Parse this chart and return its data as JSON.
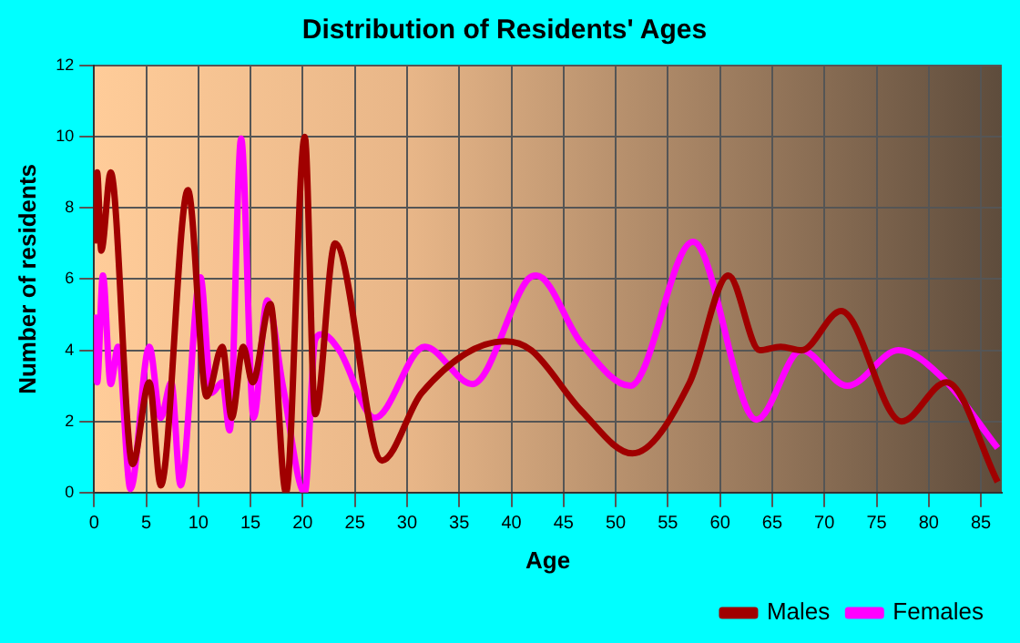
{
  "chart_data": {
    "type": "line",
    "title": "Distribution of Residents' Ages",
    "xlabel": "Age",
    "ylabel": "Number of residents",
    "xlim": [
      0,
      87
    ],
    "xticks": [
      0,
      5,
      10,
      15,
      20,
      25,
      30,
      35,
      40,
      45,
      50,
      55,
      60,
      65,
      70,
      75,
      80,
      85
    ],
    "ylim": [
      0,
      12
    ],
    "yticks": [
      0,
      2,
      4,
      6,
      8,
      10,
      12
    ],
    "grid": true,
    "legend": "bottom right",
    "marker": "none",
    "line_style": "solid",
    "series": [
      {
        "name": "Males",
        "color": "#a00000",
        "x": [
          0,
          0.3,
          0.7,
          1.6,
          3.7,
          5.3,
          6.4,
          9,
          10.8,
          12.3,
          13.2,
          14.3,
          15.2,
          16.9,
          18.4,
          20.2,
          21.2,
          23.1,
          27.6,
          31.4,
          39.4,
          41.9,
          46.7,
          51.6,
          57.1,
          60.8,
          63.8,
          65.8,
          67.8,
          71.6,
          77.4,
          81.7,
          86.6
        ],
        "values": [
          7,
          9,
          6.8,
          9,
          0.8,
          3.1,
          0.2,
          8.5,
          2.7,
          4.1,
          2.1,
          4.1,
          3.1,
          5.3,
          0,
          10,
          2.2,
          7,
          0.9,
          2.8,
          4.25,
          4,
          2.3,
          1.1,
          3.1,
          6.1,
          4,
          4.1,
          4,
          5.1,
          2,
          3.1,
          0.3
        ]
      },
      {
        "name": "Females",
        "color": "#ff00ff",
        "x": [
          0,
          0.3,
          0.85,
          1.6,
          2.3,
          3.5,
          5.3,
          6.4,
          7.4,
          8.3,
          10.2,
          11.25,
          12.3,
          13,
          14.1,
          15.3,
          16.6,
          18.1,
          20.2,
          21.2,
          21.9,
          23.5,
          26.9,
          31.7,
          36.25,
          41.6,
          42.4,
          46.7,
          51.4,
          57.4,
          63.5,
          67.8,
          72.2,
          77.1,
          81.4,
          86.6
        ],
        "values": [
          5,
          3.1,
          6.1,
          3.05,
          4.1,
          0.1,
          4.1,
          2.1,
          3.1,
          0.2,
          6.05,
          2.8,
          3.1,
          1.75,
          9.95,
          2.1,
          5.4,
          3,
          0,
          4.3,
          4.45,
          4,
          2.1,
          4.1,
          3.05,
          6,
          6.1,
          4.2,
          3,
          7.05,
          2.05,
          4,
          3,
          4,
          3.2,
          1.25
        ]
      }
    ]
  }
}
